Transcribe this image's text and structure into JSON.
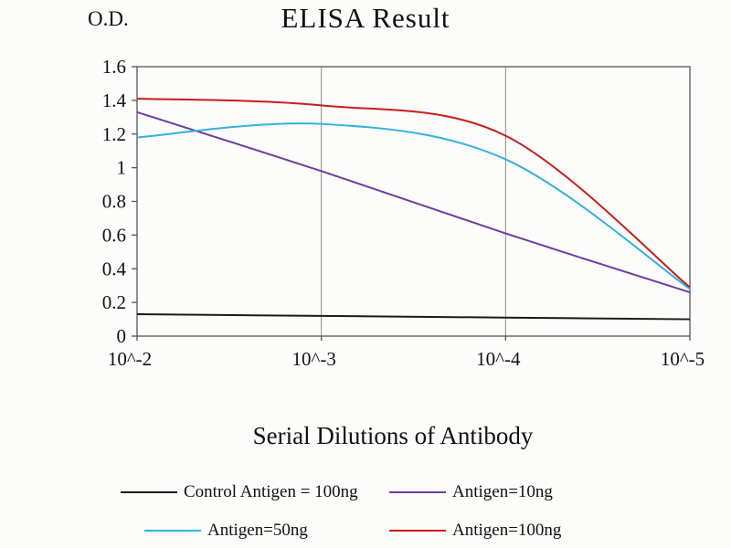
{
  "chart_data": {
    "type": "line",
    "title": "ELISA Result",
    "ylabel": "O.D.",
    "xlabel": "Serial Dilutions of Antibody",
    "categories": [
      "10^-2",
      "10^-3",
      "10^-4",
      "10^-5"
    ],
    "ylim": [
      0,
      1.6
    ],
    "ytick_step": 0.2,
    "grid": "vertical-only",
    "legend_position": "bottom",
    "colors": {
      "axis": "#555555",
      "gridline": "#8a8a8a",
      "text": "#111111"
    },
    "series": [
      {
        "name": "Control Antigen = 100ng",
        "color": "#1a1a1a",
        "values": [
          0.13,
          0.12,
          0.11,
          0.1
        ]
      },
      {
        "name": "Antigen=10ng",
        "color": "#6b3fa0",
        "values": [
          1.33,
          0.98,
          0.61,
          0.26
        ]
      },
      {
        "name": "Antigen=50ng",
        "color": "#31b2e0",
        "values": [
          1.18,
          1.26,
          1.05,
          0.28
        ]
      },
      {
        "name": "Antigen=100ng",
        "color": "#c41e1e",
        "values": [
          1.41,
          1.37,
          1.19,
          0.29
        ]
      }
    ]
  }
}
